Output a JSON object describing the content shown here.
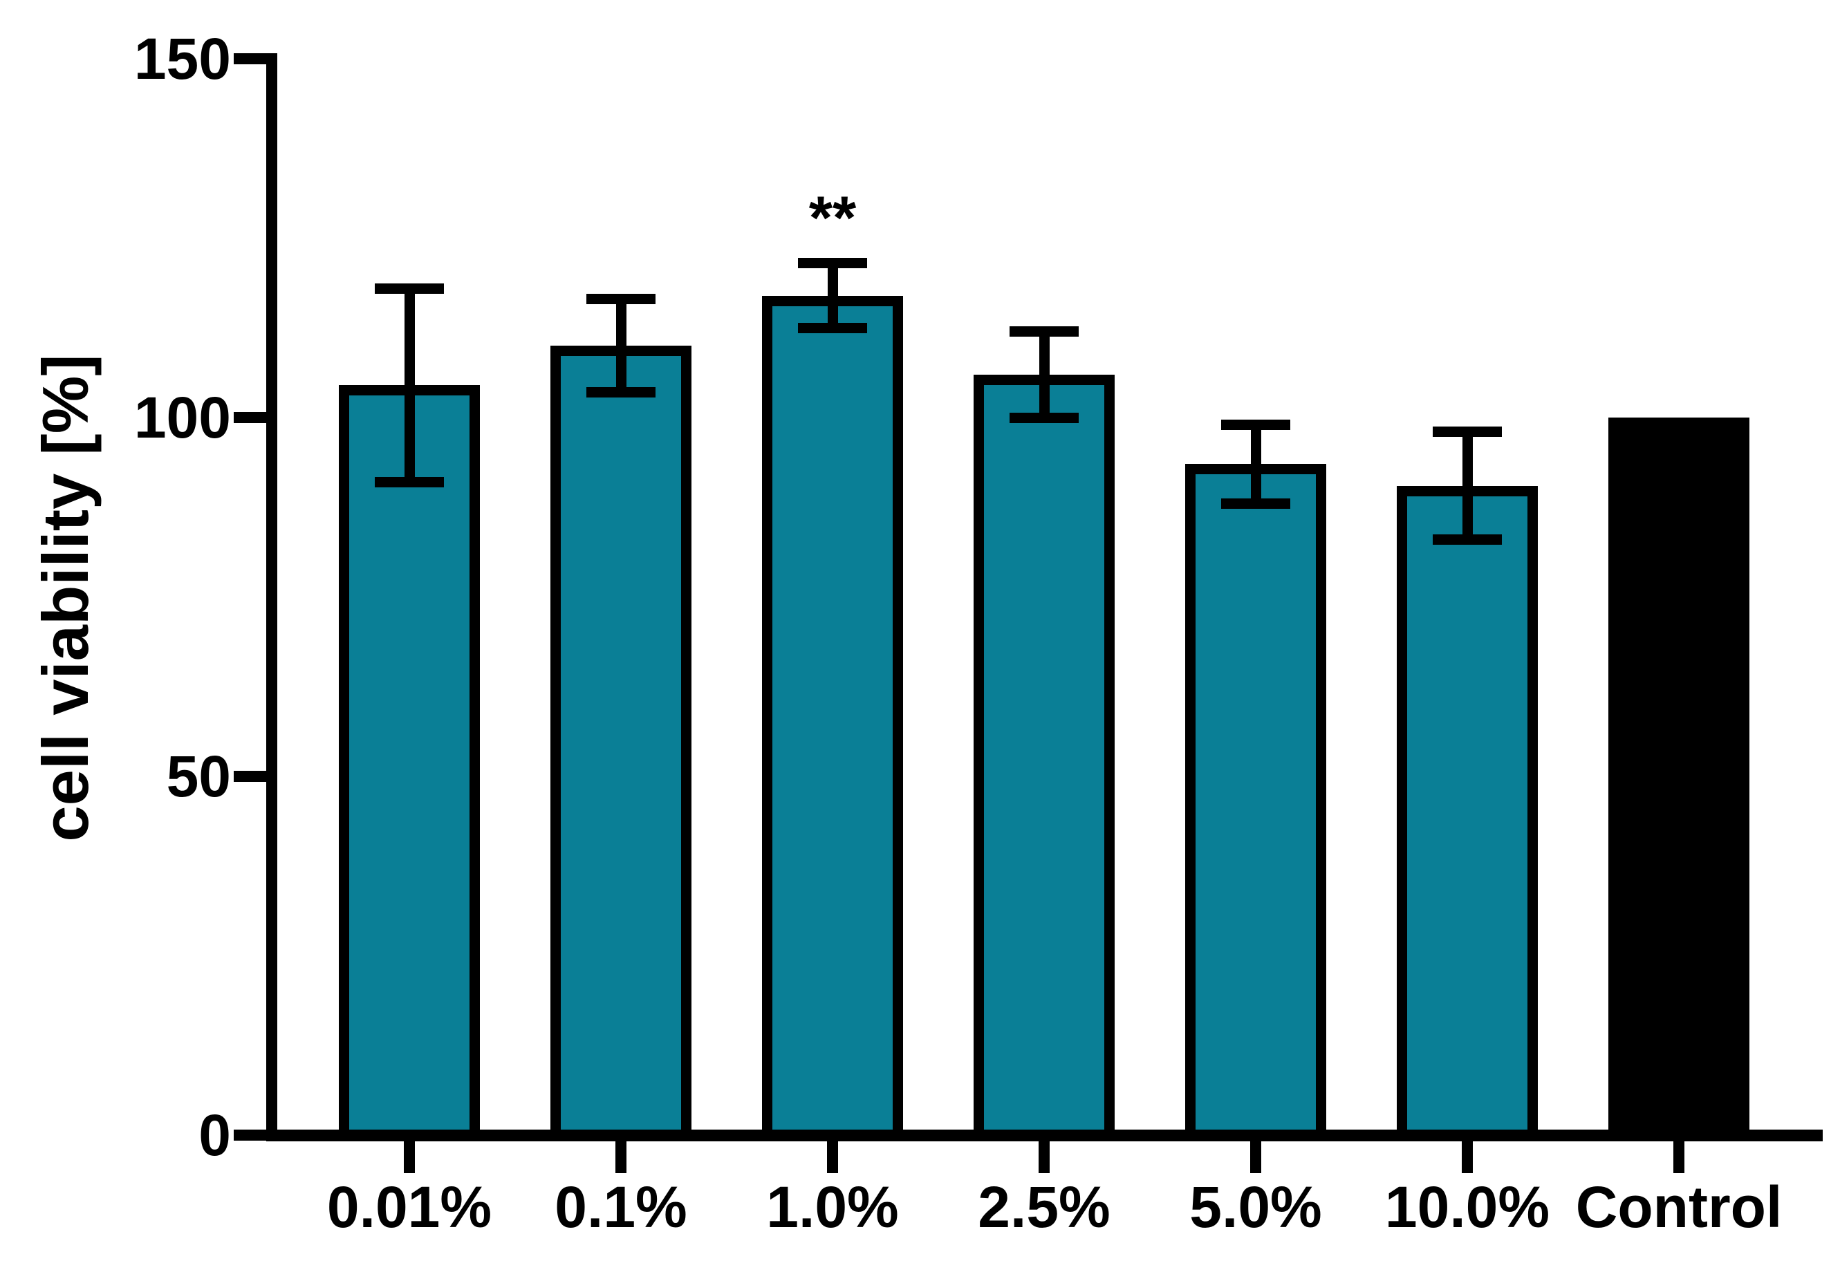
{
  "chart_data": {
    "type": "bar",
    "ylabel": "cell viability [%]",
    "xlabel": "",
    "ylim": [
      0,
      150
    ],
    "yticks": [
      0,
      50,
      100,
      150
    ],
    "categories": [
      "0.01%",
      "0.1%",
      "1.0%",
      "2.5%",
      "5.0%",
      "10.0%",
      "Control"
    ],
    "values": [
      104.5,
      110,
      117,
      106,
      93.5,
      90.5,
      100
    ],
    "errors": [
      13.5,
      6.5,
      4.5,
      6,
      5.5,
      7.5,
      0
    ],
    "error_style": "symmetric caps, drawn from bar top",
    "annotations": [
      {
        "category": "1.0%",
        "text": "**"
      }
    ],
    "bar_colors": [
      "#0a7f96",
      "#0a7f96",
      "#0a7f96",
      "#0a7f96",
      "#0a7f96",
      "#0a7f96",
      "#000000"
    ],
    "grid": false,
    "legend": null
  },
  "colors": {
    "bar_teal": "#0a7f96",
    "bar_control": "#000000",
    "axis": "#000000",
    "background": "#ffffff"
  }
}
